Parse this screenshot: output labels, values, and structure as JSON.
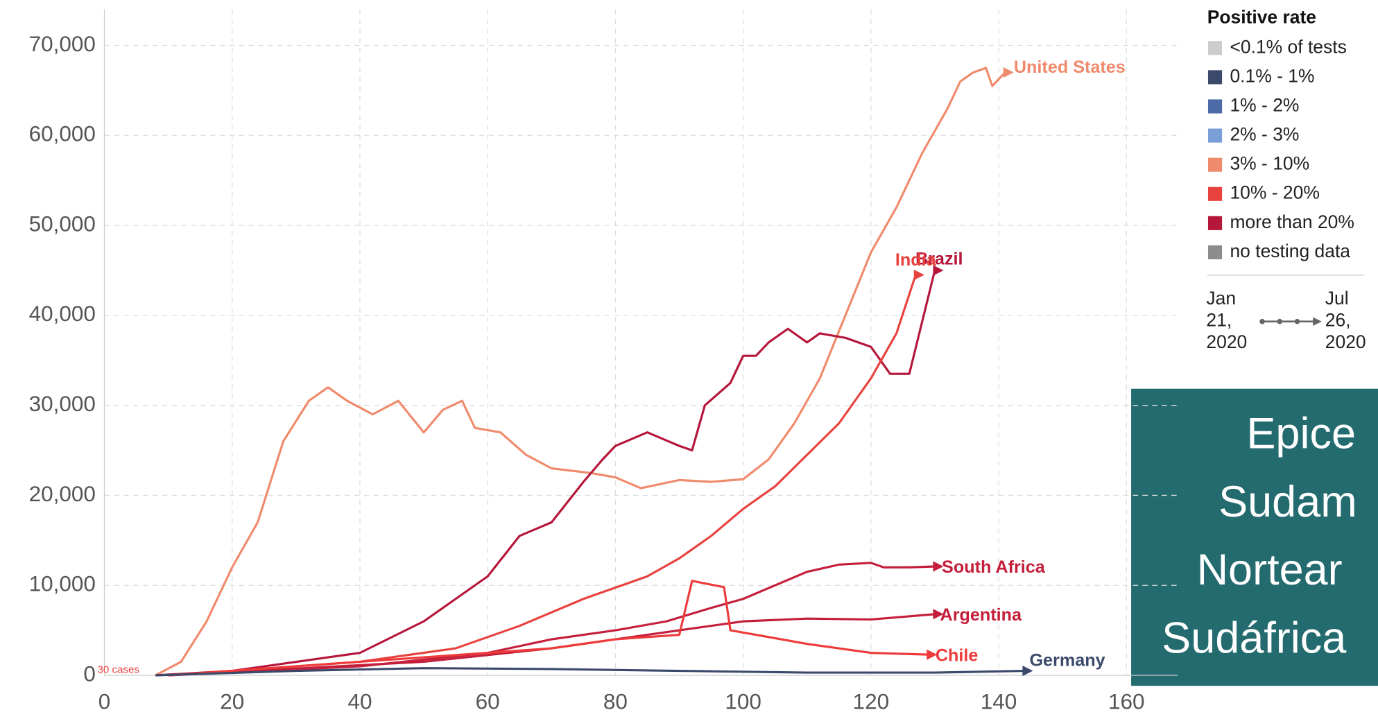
{
  "chart_data": {
    "type": "line",
    "xlim": [
      0,
      168
    ],
    "ylim": [
      0,
      74000
    ],
    "xticks": [
      0,
      20,
      40,
      60,
      80,
      100,
      120,
      140,
      160
    ],
    "yticks": [
      0,
      {
        "value": 10000,
        "label": "10,000"
      },
      {
        "value": 20000,
        "label": "20,000"
      },
      {
        "value": 30000,
        "label": "30,000"
      },
      {
        "value": 40000,
        "label": "40,000"
      },
      {
        "value": 50000,
        "label": "50,000"
      },
      {
        "value": 60000,
        "label": "60,000"
      },
      {
        "value": 70000,
        "label": "70,000"
      }
    ],
    "grid": true,
    "start_label": "30 cases",
    "series": [
      {
        "name": "United States",
        "color": "#f08a6c",
        "x": [
          8,
          12,
          16,
          20,
          24,
          28,
          32,
          35,
          38,
          42,
          46,
          50,
          53,
          56,
          58,
          62,
          66,
          70,
          76,
          80,
          84,
          90,
          95,
          100,
          104,
          108,
          112,
          116,
          120,
          124,
          128,
          132,
          134,
          136,
          138,
          139,
          141
        ],
        "values": [
          0,
          1500,
          6000,
          12000,
          17000,
          26000,
          30500,
          32000,
          30500,
          29000,
          30500,
          27000,
          29500,
          30500,
          27500,
          27000,
          24500,
          23000,
          22500,
          22000,
          20800,
          21700,
          21500,
          21800,
          24000,
          28000,
          33000,
          40000,
          47000,
          52000,
          58000,
          63000,
          66000,
          67000,
          67500,
          65500,
          67000
        ]
      },
      {
        "name": "Brazil",
        "color": "#b5163a",
        "x": [
          8,
          20,
          40,
          50,
          55,
          60,
          65,
          70,
          75,
          78,
          80,
          85,
          90,
          92,
          94,
          98,
          100,
          102,
          104,
          107,
          110,
          112,
          116,
          120,
          123,
          126,
          130
        ],
        "values": [
          0,
          500,
          2500,
          6000,
          8500,
          11000,
          15500,
          17000,
          21500,
          24000,
          25500,
          27000,
          25500,
          25000,
          30000,
          32500,
          35500,
          35500,
          37000,
          38500,
          37000,
          38000,
          37500,
          36500,
          33500,
          33500,
          45000
        ]
      },
      {
        "name": "India",
        "color": "#e8423f",
        "x": [
          10,
          40,
          55,
          65,
          75,
          85,
          90,
          95,
          100,
          105,
          110,
          115,
          120,
          124,
          127
        ],
        "values": [
          0,
          1500,
          3000,
          5500,
          8500,
          11000,
          13000,
          15500,
          18500,
          21000,
          24500,
          28000,
          33000,
          38000,
          44500
        ]
      },
      {
        "name": "South Africa",
        "color": "#c41e3a",
        "x": [
          10,
          40,
          60,
          70,
          80,
          88,
          95,
          100,
          105,
          110,
          115,
          120,
          122,
          126,
          130
        ],
        "values": [
          0,
          1000,
          2500,
          4000,
          5000,
          6000,
          7500,
          8500,
          10000,
          11500,
          12300,
          12500,
          12000,
          12000,
          12100
        ]
      },
      {
        "name": "Argentina",
        "color": "#c41e3a",
        "x": [
          10,
          50,
          70,
          90,
          100,
          110,
          120,
          130
        ],
        "values": [
          0,
          1500,
          3000,
          5000,
          6000,
          6300,
          6200,
          6800
        ]
      },
      {
        "name": "Chile",
        "color": "#ee3a3a",
        "x": [
          10,
          40,
          60,
          70,
          80,
          90,
          92,
          97,
          98,
          110,
          120,
          129
        ],
        "values": [
          0,
          1500,
          2500,
          3000,
          4000,
          4500,
          10500,
          9800,
          5000,
          3500,
          2500,
          2300
        ]
      },
      {
        "name": "Germany",
        "color": "#3b4a6b",
        "x": [
          8,
          30,
          50,
          70,
          90,
          110,
          130,
          144
        ],
        "values": [
          0,
          500,
          800,
          700,
          500,
          300,
          300,
          500
        ]
      }
    ],
    "legend": {
      "title": "Positive rate",
      "items": [
        {
          "label": "<0.1% of tests",
          "color": "#cccccc"
        },
        {
          "label": "0.1% - 1%",
          "color": "#3b4a6b"
        },
        {
          "label": "1% - 2%",
          "color": "#4c6aa6"
        },
        {
          "label": "2% - 3%",
          "color": "#7a9fd8"
        },
        {
          "label": "3% - 10%",
          "color": "#f08a6c"
        },
        {
          "label": "10% - 20%",
          "color": "#e8423f"
        },
        {
          "label": "more than 20%",
          "color": "#b5163a"
        },
        {
          "label": "no testing data",
          "color": "#8c8c8c"
        }
      ]
    },
    "time_start": [
      "Jan",
      "21,",
      "2020"
    ],
    "time_end": [
      "Jul",
      "26,",
      "2020"
    ],
    "overlay_text": [
      "Epice",
      "Sudam",
      "Nortear",
      "Sudáfrica"
    ]
  }
}
